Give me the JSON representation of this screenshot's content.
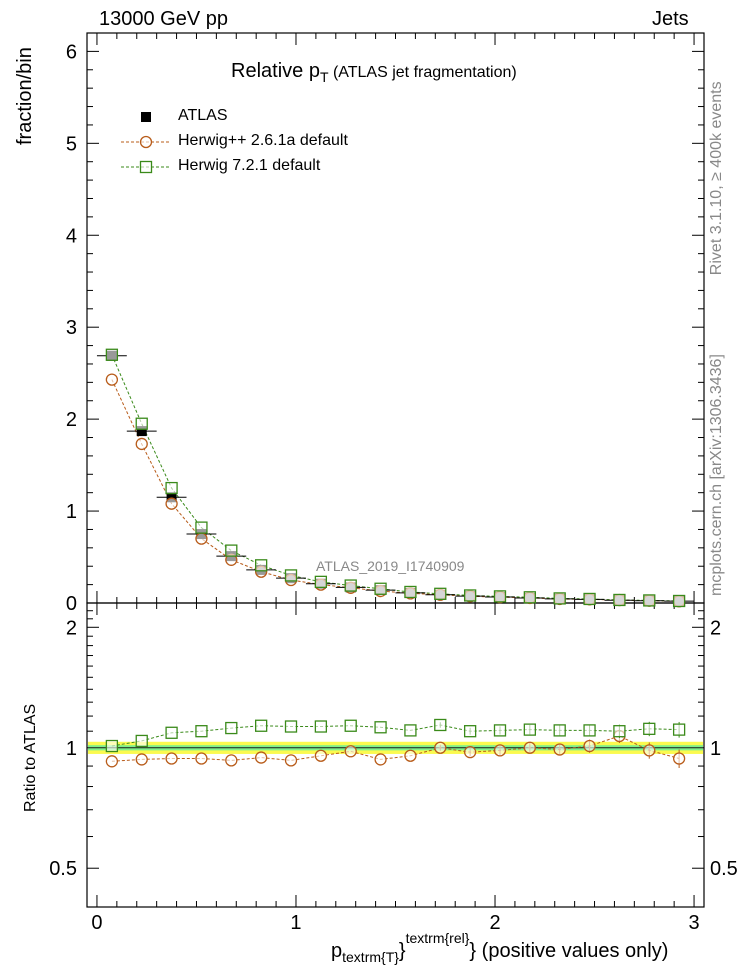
{
  "header": {
    "left": "13000 GeV pp",
    "right": "Jets",
    "side_rivet": "Rivet 3.1.10, ≥ 400k events",
    "side_mcplots": "mcplots.cern.ch [arXiv:1306.3436]",
    "analysis_id": "ATLAS_2019_I1740909"
  },
  "chart_data": [
    {
      "type": "scatter",
      "panel": "main",
      "title_main": "Relative p",
      "title_sub": "T",
      "title_rest": " (ATLAS jet fragmentation)",
      "ylabel": "fraction/bin",
      "xlim": [
        -0.05,
        3.05
      ],
      "ylim": [
        0,
        6.2
      ],
      "yticks": [
        0,
        1,
        2,
        3,
        4,
        5,
        6
      ],
      "xticks": [
        0,
        1,
        2,
        3
      ],
      "x": [
        0.075,
        0.225,
        0.375,
        0.525,
        0.675,
        0.825,
        0.975,
        1.125,
        1.275,
        1.425,
        1.575,
        1.725,
        1.875,
        2.025,
        2.175,
        2.325,
        2.475,
        2.625,
        2.775,
        2.925
      ],
      "series": [
        {
          "name": "ATLAS",
          "style": "data",
          "color": "#000000",
          "values": [
            2.69,
            1.87,
            1.15,
            0.75,
            0.51,
            0.36,
            0.27,
            0.21,
            0.17,
            0.14,
            0.11,
            0.09,
            0.075,
            0.065,
            0.055,
            0.045,
            0.04,
            0.03,
            0.025,
            0.02
          ]
        },
        {
          "name": "Herwig++ 2.6.1a default",
          "style": "circle",
          "color": "#b85c1a",
          "values": [
            2.43,
            1.73,
            1.08,
            0.7,
            0.47,
            0.34,
            0.25,
            0.2,
            0.165,
            0.13,
            0.105,
            0.09,
            0.073,
            0.064,
            0.055,
            0.044,
            0.04,
            0.032,
            0.025,
            0.019
          ]
        },
        {
          "name": "Herwig 7.2.1 default",
          "style": "square",
          "color": "#3a8a1a",
          "values": [
            2.7,
            1.95,
            1.25,
            0.82,
            0.57,
            0.41,
            0.3,
            0.23,
            0.19,
            0.155,
            0.12,
            0.1,
            0.082,
            0.072,
            0.062,
            0.05,
            0.044,
            0.033,
            0.028,
            0.022
          ]
        }
      ]
    },
    {
      "type": "scatter",
      "panel": "ratio",
      "ylabel": "Ratio to ATLAS",
      "xlabel_main": "p",
      "xlabel_sub": "textrm{T}",
      "xlabel_mid": "}",
      "xlabel_sup": "textrm{rel}",
      "xlabel_rest": "} (positive values only)",
      "xlim": [
        -0.05,
        3.05
      ],
      "ylim": [
        0.4,
        2.3
      ],
      "yticks": [
        0.5,
        1,
        2
      ],
      "ytick_labels": [
        "0.5",
        "1",
        "2"
      ],
      "xticks": [
        0,
        1,
        2,
        3
      ],
      "xtick_labels": [
        "0",
        "1",
        "2",
        "3"
      ],
      "band_inner": [
        0.985,
        1.015
      ],
      "band_outer": [
        0.965,
        1.035
      ],
      "x": [
        0.075,
        0.225,
        0.375,
        0.525,
        0.675,
        0.825,
        0.975,
        1.125,
        1.275,
        1.425,
        1.575,
        1.725,
        1.875,
        2.025,
        2.175,
        2.325,
        2.475,
        2.625,
        2.775,
        2.925
      ],
      "series": [
        {
          "name": "Herwig++ 2.6.1a default",
          "style": "circle",
          "color": "#b85c1a",
          "values": [
            0.925,
            0.935,
            0.94,
            0.94,
            0.93,
            0.945,
            0.93,
            0.955,
            0.98,
            0.935,
            0.955,
            1.0,
            0.975,
            0.985,
            1.0,
            0.99,
            1.01,
            1.07,
            0.985,
            0.94
          ]
        },
        {
          "name": "Herwig 7.2.1 default",
          "style": "square",
          "color": "#3a8a1a",
          "values": [
            1.01,
            1.04,
            1.09,
            1.1,
            1.12,
            1.135,
            1.13,
            1.13,
            1.135,
            1.125,
            1.105,
            1.14,
            1.1,
            1.105,
            1.11,
            1.105,
            1.105,
            1.1,
            1.115,
            1.11
          ]
        }
      ]
    }
  ]
}
